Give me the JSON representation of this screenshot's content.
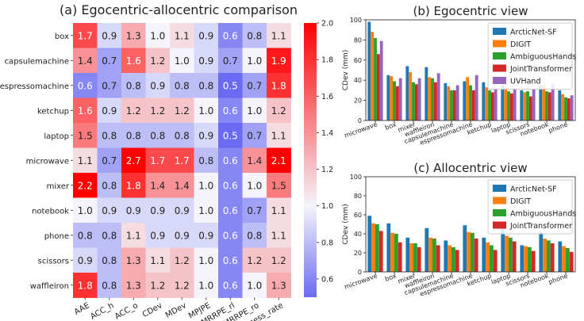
{
  "chart_data": [
    {
      "type": "heatmap",
      "title": "(a) Egocentric-allocentric comparison",
      "rows": [
        "box",
        "capsulemachine",
        "espressomachine",
        "ketchup",
        "laptop",
        "microwave",
        "mixer",
        "notebook",
        "phone",
        "scissors",
        "waffleiron"
      ],
      "columns": [
        "AAE",
        "ACC_h",
        "ACC_o",
        "CDev",
        "MDev",
        "MPJPE",
        "MRRPE_rl",
        "MRRPE_ro",
        "success_rate"
      ],
      "values": [
        [
          1.7,
          0.9,
          1.3,
          1.0,
          1.1,
          0.9,
          0.6,
          0.8,
          1.1
        ],
        [
          1.4,
          0.7,
          1.6,
          1.2,
          1.0,
          0.9,
          0.7,
          1.0,
          1.9
        ],
        [
          0.6,
          0.7,
          0.8,
          0.9,
          0.8,
          0.8,
          0.5,
          0.7,
          1.8
        ],
        [
          1.6,
          0.9,
          1.2,
          1.2,
          1.2,
          1.0,
          0.6,
          1.0,
          1.2
        ],
        [
          1.5,
          0.8,
          0.8,
          0.8,
          0.8,
          0.9,
          0.5,
          0.7,
          1.1
        ],
        [
          1.1,
          0.7,
          2.7,
          1.7,
          1.7,
          0.8,
          0.6,
          1.4,
          2.1
        ],
        [
          2.2,
          0.8,
          1.8,
          1.4,
          1.4,
          1.0,
          0.6,
          1.0,
          1.5
        ],
        [
          1.0,
          0.9,
          0.9,
          0.9,
          0.9,
          1.0,
          0.6,
          0.7,
          1.1
        ],
        [
          0.8,
          0.8,
          1.1,
          0.9,
          0.9,
          0.9,
          0.6,
          0.8,
          1.1
        ],
        [
          0.9,
          0.8,
          1.3,
          1.1,
          1.2,
          1.0,
          0.6,
          1.2,
          1.2
        ],
        [
          1.8,
          0.8,
          1.3,
          1.2,
          1.2,
          1.0,
          0.6,
          1.0,
          1.3
        ]
      ],
      "colorbar": {
        "min": 0.5,
        "max": 2.0,
        "ticks": [
          "0.6",
          "0.8",
          "1.0",
          "1.2",
          "1.4",
          "1.6",
          "1.8",
          "2.0"
        ],
        "low_color": "#6a6af2",
        "mid_color": "#f4f4fa",
        "high_color": "#ff0000"
      }
    },
    {
      "type": "bar",
      "title": "(b) Egocentric view",
      "ylabel": "CDev (mm)",
      "ylim": [
        0,
        100
      ],
      "yticks": [
        "0",
        "20",
        "40",
        "60",
        "80",
        "100"
      ],
      "legend_position": "top-right",
      "categories": [
        "microwave",
        "box",
        "mixer",
        "waffleiron",
        "capsulemachine",
        "espressomachine",
        "ketchup",
        "laptop",
        "scissors",
        "notebook",
        "phone"
      ],
      "series": [
        {
          "name": "ArcticNet-SF",
          "color": "#1f77b4",
          "values": [
            98,
            45,
            54,
            53,
            37,
            39,
            38,
            35,
            30,
            35,
            30
          ]
        },
        {
          "name": "DIGIT",
          "color": "#ff7f0e",
          "values": [
            88,
            44,
            48,
            43,
            34,
            43,
            33,
            33,
            28,
            35,
            26
          ]
        },
        {
          "name": "AmbiguousHands",
          "color": "#2ca02c",
          "values": [
            82,
            39,
            38,
            42,
            30,
            35,
            30,
            29,
            29,
            29,
            23
          ]
        },
        {
          "name": "JointTransformer",
          "color": "#d62728",
          "values": [
            66,
            34,
            36,
            38,
            30,
            30,
            28,
            27,
            24,
            28,
            22
          ]
        },
        {
          "name": "UVHand",
          "color": "#9467bd",
          "values": [
            79,
            42,
            42,
            47,
            35,
            45,
            32,
            32,
            31,
            36,
            25
          ]
        }
      ]
    },
    {
      "type": "bar",
      "title": "(c) Allocentric view",
      "ylabel": "CDev (mm)",
      "ylim": [
        0,
        100
      ],
      "yticks": [
        "0",
        "20",
        "40",
        "60",
        "80",
        "100"
      ],
      "legend_position": "top-right",
      "categories": [
        "microwave",
        "box",
        "mixer",
        "waffleiron",
        "capsulemachine",
        "espressomachine",
        "ketchup",
        "laptop",
        "scissors",
        "notebook",
        "phone"
      ],
      "series": [
        {
          "name": "ArcticNet-SF",
          "color": "#1f77b4",
          "values": [
            59,
            51,
            36,
            46,
            33,
            49,
            36,
            46,
            28,
            42,
            32
          ]
        },
        {
          "name": "DIGIT",
          "color": "#ff7f0e",
          "values": [
            51,
            41,
            30,
            36,
            28,
            42,
            31,
            38,
            27,
            35,
            27
          ]
        },
        {
          "name": "AmbiguousHands",
          "color": "#2ca02c",
          "values": [
            50,
            40,
            30,
            35,
            26,
            41,
            28,
            36,
            26,
            33,
            25
          ]
        },
        {
          "name": "JointTransformer",
          "color": "#d62728",
          "values": [
            43,
            31,
            26,
            28,
            23,
            35,
            23,
            32,
            22,
            30,
            21
          ]
        }
      ]
    }
  ]
}
